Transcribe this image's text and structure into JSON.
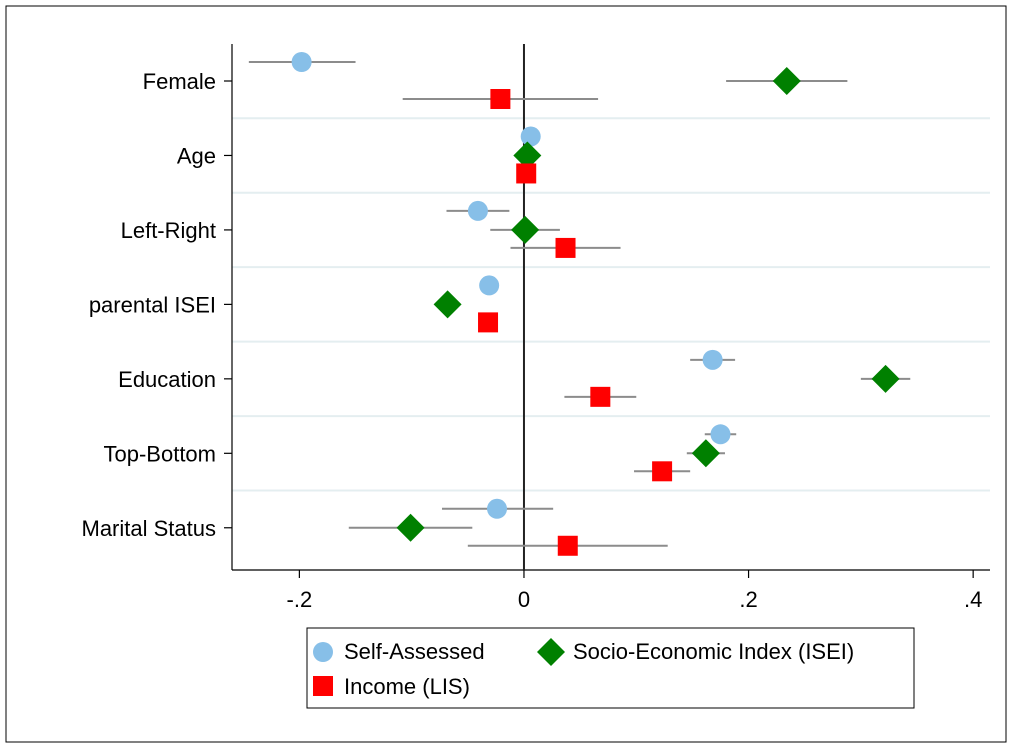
{
  "chart_data": {
    "type": "scatter",
    "subtype": "coefficient-plot",
    "title": "",
    "xlabel": "",
    "ylabel": "",
    "xlim": [
      -0.26,
      0.415
    ],
    "xticks": [
      -0.2,
      0,
      0.2,
      0.4
    ],
    "xtick_labels": [
      "-.2",
      "0",
      ".2",
      ".4"
    ],
    "reference_line_x": 0,
    "grid": "horizontal separators between categories",
    "legend_position": "bottom",
    "categories": [
      "Female",
      "Age",
      "Left-Right",
      "parental ISEI",
      "Education",
      "Top-Bottom",
      "Marital Status"
    ],
    "series": [
      {
        "name": "Self-Assessed",
        "marker": "circle",
        "color": "#87BFE8",
        "values": [
          -0.198,
          0.006,
          -0.041,
          -0.031,
          0.168,
          0.175,
          -0.024
        ],
        "ci_low": [
          -0.245,
          0.002,
          -0.069,
          -0.035,
          0.148,
          0.161,
          -0.073
        ],
        "ci_high": [
          -0.15,
          0.01,
          -0.013,
          -0.027,
          0.188,
          0.189,
          0.026
        ]
      },
      {
        "name": "Socio-Economic Index (ISEI)",
        "marker": "diamond",
        "color": "#008000",
        "values": [
          0.234,
          0.003,
          0.001,
          -0.068,
          0.322,
          0.162,
          -0.101
        ],
        "ci_low": [
          0.18,
          -0.001,
          -0.03,
          -0.072,
          0.3,
          0.145,
          -0.156
        ],
        "ci_high": [
          0.288,
          0.007,
          0.032,
          -0.064,
          0.344,
          0.179,
          -0.046
        ]
      },
      {
        "name": "Income (LIS)",
        "marker": "square",
        "color": "#FF0000",
        "values": [
          -0.021,
          0.002,
          0.037,
          -0.032,
          0.068,
          0.123,
          0.039
        ],
        "ci_low": [
          -0.108,
          -0.002,
          -0.012,
          -0.036,
          0.036,
          0.098,
          -0.05
        ],
        "ci_high": [
          0.066,
          0.006,
          0.086,
          -0.028,
          0.1,
          0.148,
          0.128
        ]
      }
    ]
  },
  "legend": {
    "items": [
      "Self-Assessed",
      "Socio-Economic Index (ISEI)",
      "Income (LIS)"
    ]
  }
}
